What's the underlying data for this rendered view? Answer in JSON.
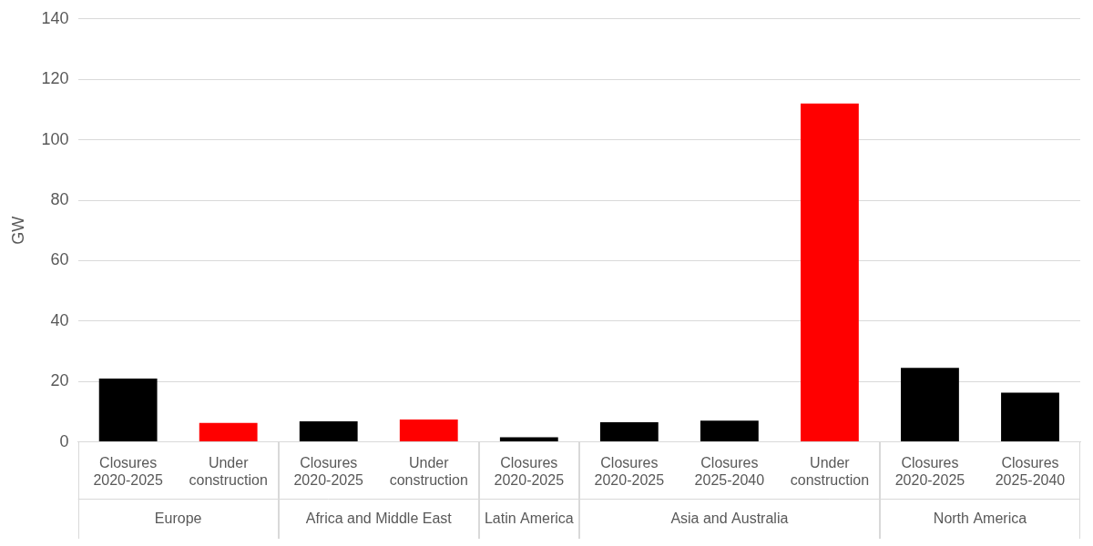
{
  "chart_data": {
    "type": "bar",
    "categories": [
      "Closures 2020-2025",
      "Under construction",
      "Closures 2020-2025",
      "Under construction",
      "Closures 2020-2025",
      "Closures 2020-2025",
      "Closures 2025-2040",
      "Under construction",
      "Closures 2020-2025",
      "Closures 2025-2040"
    ],
    "groups": [
      "Europe",
      "Europe",
      "Africa and Middle East",
      "Africa and Middle East",
      "Latin America",
      "Asia and Australia",
      "Asia and Australia",
      "Asia and Australia",
      "North America",
      "North America"
    ],
    "values": [
      21,
      6.3,
      6.8,
      7.4,
      1.5,
      6.5,
      7,
      112,
      24.5,
      16.3
    ],
    "colors": [
      "#000000",
      "#ff0000",
      "#000000",
      "#ff0000",
      "#000000",
      "#000000",
      "#000000",
      "#ff0000",
      "#000000",
      "#000000"
    ],
    "ylabel": "GW",
    "ylim": [
      0,
      140
    ],
    "yticks": [
      0,
      20,
      40,
      60,
      80,
      100,
      120,
      140
    ],
    "grid": true
  }
}
